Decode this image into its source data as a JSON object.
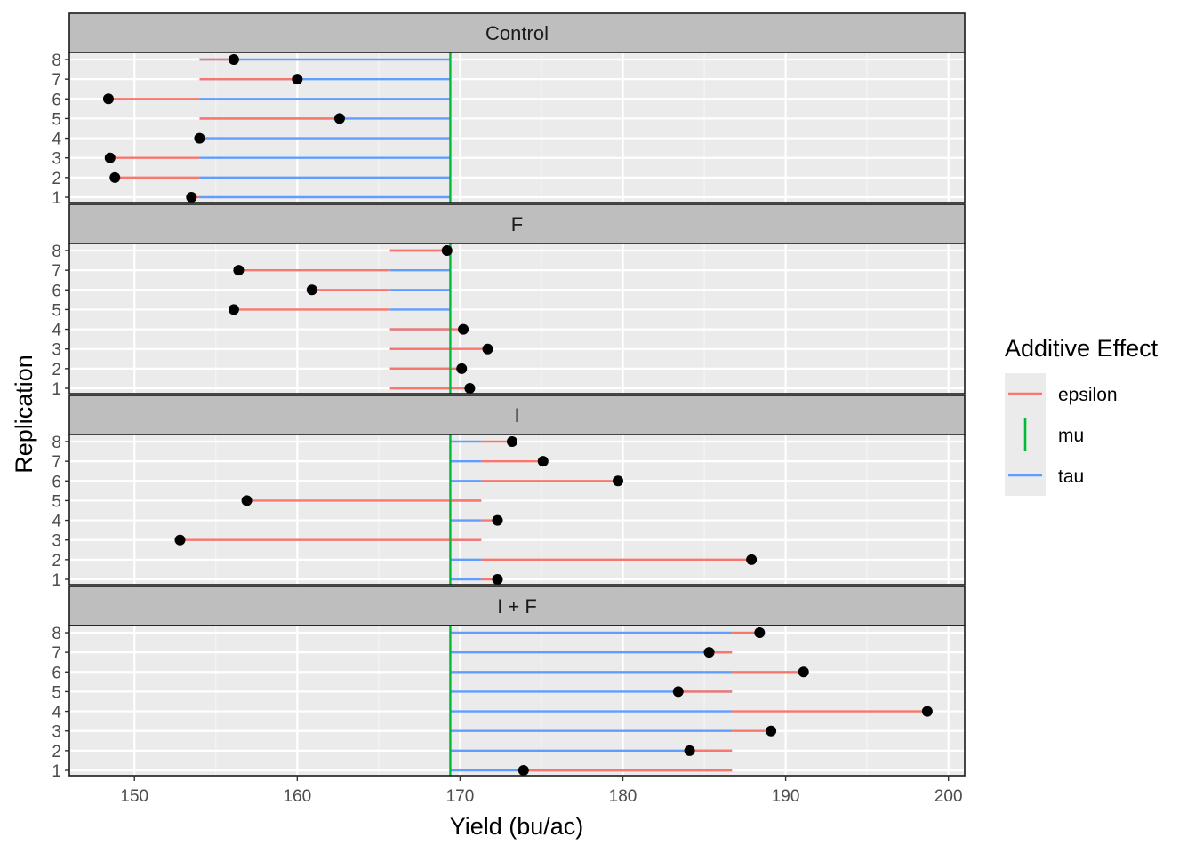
{
  "chart_data": {
    "type": "dot-segment",
    "xlabel": "Yield (bu/ac)",
    "ylabel": "Replication",
    "xlim": [
      146,
      201
    ],
    "xticks": [
      150,
      160,
      170,
      180,
      190,
      200
    ],
    "xtick_labels": [
      "150",
      "160",
      "170",
      "180",
      "190",
      "200"
    ],
    "replications": [
      1,
      2,
      3,
      4,
      5,
      6,
      7,
      8
    ],
    "rep_labels": [
      "1",
      "2",
      "3",
      "4",
      "5",
      "6",
      "7",
      "8"
    ],
    "mu": 169.4,
    "colors": {
      "epsilon": "#F8766D",
      "mu": "#00BA38",
      "tau": "#619CFF",
      "point": "#000000"
    },
    "legend": {
      "title": "Additive Effect",
      "entries": [
        {
          "key": "epsilon",
          "label": "epsilon"
        },
        {
          "key": "mu",
          "label": "mu"
        },
        {
          "key": "tau",
          "label": "tau"
        }
      ]
    },
    "panels": [
      {
        "name": "Control",
        "treatment_mean": 154.0,
        "yields": [
          153.5,
          148.8,
          148.5,
          154.0,
          162.6,
          148.4,
          160.0,
          156.1
        ]
      },
      {
        "name": "F",
        "treatment_mean": 165.7,
        "yields": [
          170.6,
          170.1,
          171.7,
          170.2,
          156.1,
          160.9,
          156.4,
          169.2
        ]
      },
      {
        "name": "I",
        "treatment_mean": 171.3,
        "yields": [
          172.3,
          187.9,
          152.8,
          172.3,
          156.9,
          179.7,
          175.1,
          173.2
        ]
      },
      {
        "name": "I + F",
        "treatment_mean": 186.7,
        "yields": [
          173.9,
          184.1,
          189.1,
          198.7,
          183.4,
          191.1,
          185.3,
          188.4
        ]
      }
    ]
  }
}
